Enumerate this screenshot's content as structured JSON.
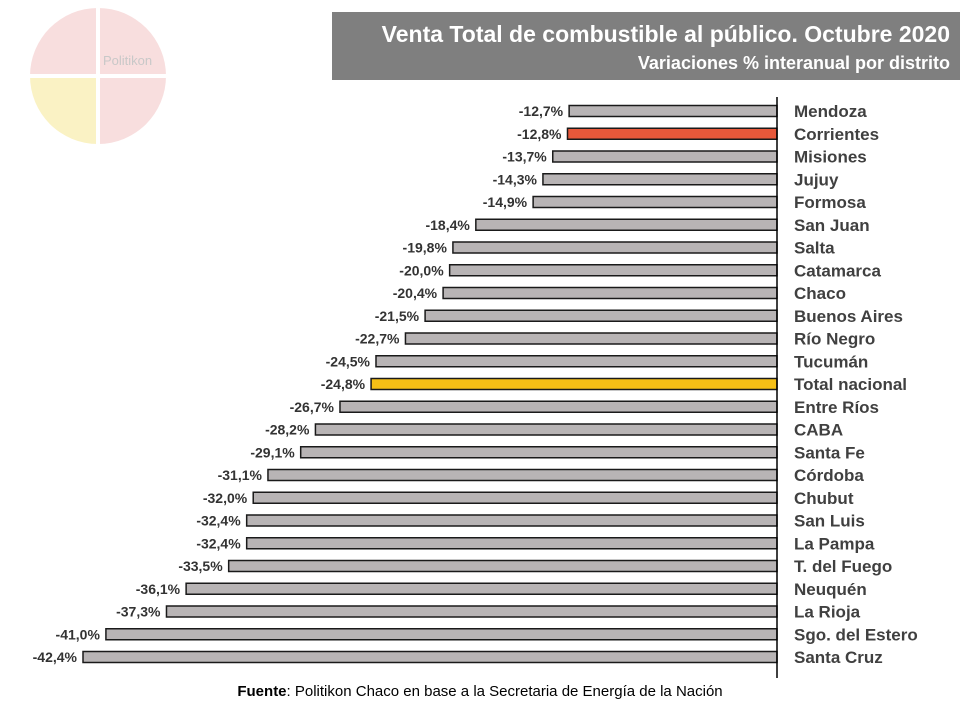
{
  "header": {
    "title": "Venta Total de combustible al público. Octubre 2020",
    "subtitle": "Variaciones % interanual por distrito"
  },
  "logo": {
    "text": "Politikon"
  },
  "source": {
    "label": "Fuente",
    "text": ": Politikon Chaco en base a la Secretaria de Energía de la Nación"
  },
  "colors": {
    "default_bar": "#b8b4b5",
    "highlight_province": "#e8583a",
    "highlight_total": "#f5bf16",
    "header_bg": "#7f7f7f"
  },
  "chart_data": {
    "type": "bar",
    "orientation": "horizontal",
    "categories": [
      "Mendoza",
      "Corrientes",
      "Misiones",
      "Jujuy",
      "Formosa",
      "San Juan",
      "Salta",
      "Catamarca",
      "Chaco",
      "Buenos Aires",
      "Río Negro",
      "Tucumán",
      "Total nacional",
      "Entre Ríos",
      "CABA",
      "Santa Fe",
      "Córdoba",
      "Chubut",
      "San Luis",
      "La Pampa",
      "T. del Fuego",
      "Neuquén",
      "La Rioja",
      "Sgo. del Estero",
      "Santa Cruz"
    ],
    "values": [
      -12.7,
      -12.8,
      -13.7,
      -14.3,
      -14.9,
      -18.4,
      -19.8,
      -20.0,
      -20.4,
      -21.5,
      -22.7,
      -24.5,
      -24.8,
      -26.7,
      -28.2,
      -29.1,
      -31.1,
      -32.0,
      -32.4,
      -32.4,
      -33.5,
      -36.1,
      -37.3,
      -41.0,
      -42.4
    ],
    "labels": [
      "-12,7%",
      "-12,8%",
      "-13,7%",
      "-14,3%",
      "-14,9%",
      "-18,4%",
      "-19,8%",
      "-20,0%",
      "-20,4%",
      "-21,5%",
      "-22,7%",
      "-24,5%",
      "-24,8%",
      "-26,7%",
      "-28,2%",
      "-29,1%",
      "-31,1%",
      "-32,0%",
      "-32,4%",
      "-32,4%",
      "-33,5%",
      "-36,1%",
      "-37,3%",
      "-41,0%",
      "-42,4%"
    ],
    "highlight": {
      "Corrientes": "highlight_province",
      "Total nacional": "highlight_total"
    },
    "xlim": [
      -42.4,
      0
    ],
    "grid": false,
    "legend": "none"
  }
}
